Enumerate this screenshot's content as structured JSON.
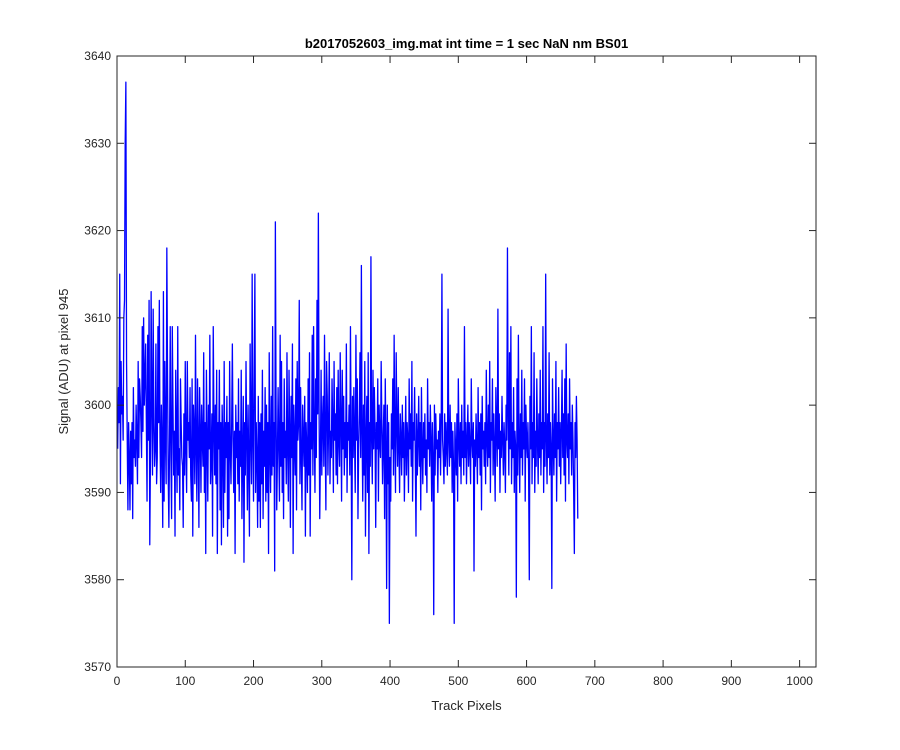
{
  "chart_data": {
    "type": "line",
    "title": "b2017052603_img.mat int time = 1 sec  NaN nm BS01",
    "xlabel": "Track Pixels",
    "ylabel": "Signal (ADU) at pixel 945",
    "xlim": [
      0,
      1024
    ],
    "ylim": [
      3570,
      3640
    ],
    "xticks": [
      "0",
      "100",
      "200",
      "300",
      "400",
      "500",
      "600",
      "700",
      "800",
      "900",
      "1000"
    ],
    "yticks": [
      "3570",
      "3580",
      "3590",
      "3600",
      "3610",
      "3620",
      "3630",
      "3640"
    ],
    "grid": false,
    "box": true,
    "line_color": "#0000ff",
    "series": [
      {
        "x_start": 1,
        "x_step": 1,
        "values": [
          3595,
          3602,
          3598,
          3615,
          3591,
          3605,
          3599,
          3601,
          3596,
          3610,
          3612,
          3630,
          3637,
          3605,
          3596,
          3588,
          3598,
          3594,
          3588,
          3597,
          3591,
          3598,
          3587,
          3602,
          3594,
          3596,
          3593,
          3600,
          3596,
          3591,
          3605,
          3594,
          3603,
          3601,
          3598,
          3594,
          3609,
          3597,
          3610,
          3600,
          3603,
          3607,
          3598,
          3589,
          3608,
          3596,
          3612,
          3584,
          3594,
          3613,
          3600,
          3592,
          3611,
          3598,
          3593,
          3595,
          3607,
          3591,
          3594,
          3609,
          3598,
          3612,
          3596,
          3590,
          3600,
          3595,
          3586,
          3613,
          3589,
          3605,
          3596,
          3591,
          3618,
          3604,
          3592,
          3586,
          3596,
          3609,
          3594,
          3587,
          3609,
          3600,
          3592,
          3597,
          3585,
          3604,
          3596,
          3590,
          3609,
          3592,
          3595,
          3588,
          3603,
          3598,
          3594,
          3593,
          3586,
          3599,
          3592,
          3605,
          3595,
          3590,
          3605,
          3596,
          3598,
          3594,
          3602,
          3592,
          3589,
          3603,
          3585,
          3600,
          3597,
          3591,
          3608,
          3595,
          3589,
          3603,
          3596,
          3586,
          3602,
          3597,
          3590,
          3600,
          3596,
          3593,
          3606,
          3590,
          3598,
          3583,
          3604,
          3596,
          3589,
          3600,
          3595,
          3608,
          3591,
          3594,
          3599,
          3585,
          3609,
          3598,
          3592,
          3600,
          3591,
          3604,
          3583,
          3598,
          3595,
          3604,
          3588,
          3598,
          3584,
          3600,
          3596,
          3586,
          3605,
          3590,
          3598,
          3594,
          3601,
          3585,
          3598,
          3587,
          3605,
          3595,
          3591,
          3598,
          3607,
          3596,
          3590,
          3597,
          3583,
          3600,
          3594,
          3598,
          3591,
          3603,
          3589,
          3597,
          3593,
          3604,
          3587,
          3594,
          3601,
          3582,
          3598,
          3592,
          3605,
          3596,
          3588,
          3600,
          3593,
          3585,
          3607,
          3597,
          3591,
          3615,
          3596,
          3589,
          3604,
          3615,
          3590,
          3598,
          3594,
          3586,
          3601,
          3589,
          3598,
          3586,
          3599,
          3591,
          3604,
          3587,
          3597,
          3593,
          3602,
          3589,
          3600,
          3590,
          3598,
          3583,
          3606,
          3595,
          3590,
          3601,
          3592,
          3609,
          3593,
          3598,
          3581,
          3621,
          3600,
          3588,
          3594,
          3602,
          3595,
          3589,
          3608,
          3593,
          3605,
          3590,
          3598,
          3587,
          3603,
          3594,
          3597,
          3591,
          3606,
          3595,
          3589,
          3604,
          3597,
          3586,
          3601,
          3594,
          3607,
          3583,
          3600,
          3596,
          3592,
          3603,
          3588,
          3605,
          3596,
          3598,
          3612,
          3591,
          3602,
          3594,
          3588,
          3600,
          3596,
          3593,
          3601,
          3585,
          3598,
          3595,
          3590,
          3603,
          3592,
          3606,
          3585,
          3598,
          3595,
          3608,
          3592,
          3609,
          3597,
          3590,
          3603,
          3594,
          3612,
          3599,
          3622,
          3600,
          3587,
          3594,
          3604,
          3592,
          3598,
          3601,
          3593,
          3608,
          3596,
          3588,
          3605,
          3601,
          3592,
          3598,
          3606,
          3591,
          3597,
          3594,
          3603,
          3598,
          3590,
          3605,
          3596,
          3599,
          3592,
          3602,
          3591,
          3604,
          3596,
          3593,
          3606,
          3598,
          3589,
          3604,
          3595,
          3601,
          3592,
          3598,
          3594,
          3607,
          3590,
          3598,
          3596,
          3600,
          3592,
          3609,
          3596,
          3580,
          3601,
          3594,
          3602,
          3596,
          3590,
          3608,
          3596,
          3603,
          3587,
          3595,
          3599,
          3606,
          3594,
          3616,
          3597,
          3589,
          3600,
          3592,
          3605,
          3585,
          3596,
          3601,
          3590,
          3606,
          3583,
          3598,
          3593,
          3617,
          3596,
          3591,
          3604,
          3595,
          3602,
          3597,
          3586,
          3598,
          3595,
          3603,
          3589,
          3600,
          3596,
          3594,
          3605,
          3598,
          3591,
          3596,
          3600,
          3587,
          3603,
          3595,
          3579,
          3600,
          3591,
          3598,
          3575,
          3594,
          3589,
          3599,
          3595,
          3603,
          3592,
          3608,
          3596,
          3590,
          3606,
          3598,
          3593,
          3602,
          3595,
          3590,
          3599,
          3596,
          3592,
          3600,
          3594,
          3598,
          3589,
          3595,
          3601,
          3592,
          3598,
          3596,
          3590,
          3603,
          3595,
          3599,
          3593,
          3605,
          3589,
          3598,
          3596,
          3602,
          3594,
          3585,
          3599,
          3592,
          3596,
          3601,
          3593,
          3598,
          3588,
          3602,
          3595,
          3591,
          3598,
          3594,
          3599,
          3592,
          3596,
          3590,
          3603,
          3595,
          3598,
          3593,
          3600,
          3596,
          3589,
          3598,
          3594,
          3576,
          3600,
          3592,
          3599,
          3595,
          3596,
          3590,
          3597,
          3594,
          3599,
          3592,
          3598,
          3615,
          3596,
          3594,
          3591,
          3599,
          3593,
          3598,
          3595,
          3592,
          3611,
          3596,
          3593,
          3600,
          3594,
          3598,
          3590,
          3597,
          3593,
          3575,
          3598,
          3595,
          3592,
          3599,
          3589,
          3603,
          3596,
          3593,
          3598,
          3591,
          3600,
          3594,
          3597,
          3592,
          3609,
          3594,
          3598,
          3591,
          3596,
          3600,
          3593,
          3598,
          3595,
          3591,
          3603,
          3596,
          3594,
          3598,
          3581,
          3596,
          3593,
          3599,
          3595,
          3591,
          3602,
          3594,
          3598,
          3592,
          3599,
          3588,
          3601,
          3595,
          3597,
          3593,
          3598,
          3591,
          3604,
          3596,
          3593,
          3600,
          3594,
          3605,
          3590,
          3598,
          3596,
          3603,
          3592,
          3599,
          3595,
          3589,
          3602,
          3597,
          3593,
          3611,
          3595,
          3599,
          3590,
          3597,
          3594,
          3601,
          3596,
          3592,
          3598,
          3595,
          3590,
          3600,
          3596,
          3618,
          3599,
          3592,
          3606,
          3595,
          3609,
          3591,
          3598,
          3594,
          3602,
          3590,
          3597,
          3595,
          3578,
          3603,
          3592,
          3608,
          3596,
          3590,
          3599,
          3594,
          3604,
          3592,
          3598,
          3595,
          3603,
          3589,
          3600,
          3596,
          3594,
          3598,
          3592,
          3580,
          3601,
          3595,
          3609,
          3591,
          3598,
          3594,
          3606,
          3590,
          3597,
          3593,
          3603,
          3596,
          3591,
          3599,
          3594,
          3604,
          3592,
          3598,
          3595,
          3609,
          3590,
          3598,
          3593,
          3615,
          3596,
          3591,
          3599,
          3594,
          3606,
          3592,
          3598,
          3595,
          3579,
          3603,
          3596,
          3592,
          3599,
          3594,
          3605,
          3589,
          3598,
          3595,
          3602,
          3593,
          3598,
          3591,
          3597,
          3604,
          3594,
          3599,
          3592,
          3603,
          3589,
          3607,
          3596,
          3594,
          3599,
          3591,
          3603,
          3595,
          3598,
          3592,
          3600,
          3596,
          3590,
          3583,
          3598,
          3594,
          3601,
          3596,
          3587
        ]
      }
    ]
  }
}
